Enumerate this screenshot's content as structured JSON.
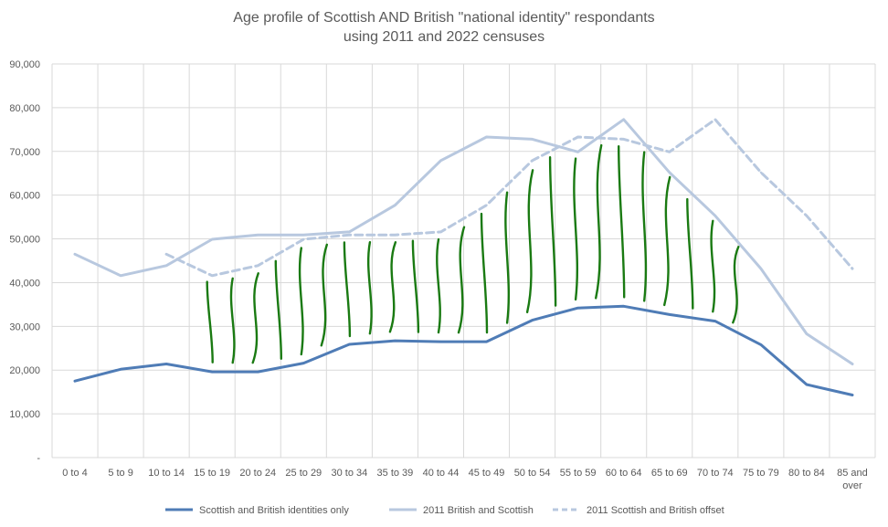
{
  "chart_data": {
    "type": "line",
    "title_lines": [
      "Age profile of Scottish AND British  \"national identity\" respondants",
      "using 2011 and 2022 censuses"
    ],
    "xlabel": "",
    "ylabel": "",
    "ylim": [
      0,
      90000
    ],
    "y_ticks": [
      {
        "value": 0,
        "label": "-"
      },
      {
        "value": 10000,
        "label": "10,000"
      },
      {
        "value": 20000,
        "label": "20,000"
      },
      {
        "value": 30000,
        "label": "30,000"
      },
      {
        "value": 40000,
        "label": "40,000"
      },
      {
        "value": 50000,
        "label": "50,000"
      },
      {
        "value": 60000,
        "label": "60,000"
      },
      {
        "value": 70000,
        "label": "70,000"
      },
      {
        "value": 80000,
        "label": "80,000"
      },
      {
        "value": 90000,
        "label": "90,000"
      }
    ],
    "grid": true,
    "categories": [
      [
        "0 to  4"
      ],
      [
        "5 to 9"
      ],
      [
        "10 to 14"
      ],
      [
        "15 to 19"
      ],
      [
        "20 to 24"
      ],
      [
        "25 to 29"
      ],
      [
        "30 to 34"
      ],
      [
        "35 to 39"
      ],
      [
        "40 to 44"
      ],
      [
        "45 to 49"
      ],
      [
        "50 to 54"
      ],
      [
        "55 to 59"
      ],
      [
        "60 to 64"
      ],
      [
        "65 to 69"
      ],
      [
        "70 to 74"
      ],
      [
        "75 to 79"
      ],
      [
        "80 to 84"
      ],
      [
        "85 and",
        "over"
      ]
    ],
    "series": [
      {
        "name": "Scottish and British identities only",
        "color": "#4f7cb6",
        "style": "solid",
        "values": [
          17500,
          20200,
          21400,
          19600,
          19600,
          21600,
          25900,
          26700,
          26500,
          26500,
          31400,
          34200,
          34600,
          32700,
          31200,
          25800,
          16700,
          14300
        ]
      },
      {
        "name": "2011 British and Scottish",
        "color": "#b8c8df",
        "style": "solid",
        "values": [
          46500,
          41600,
          43900,
          49900,
          50900,
          50900,
          51600,
          57700,
          67900,
          73300,
          72800,
          69900,
          77300,
          65200,
          55300,
          43200,
          28300,
          21400
        ]
      },
      {
        "name": "2011 Scottish and British offset",
        "color": "#b8c8df",
        "style": "dashed",
        "values": [
          null,
          null,
          46500,
          41600,
          43900,
          49900,
          50900,
          50900,
          51600,
          57700,
          67900,
          73300,
          72800,
          69900,
          77300,
          65200,
          55300,
          43200
        ]
      }
    ],
    "annotations": {
      "type": "hand-drawn green hatching between solid dark line and upper light lines",
      "color": "#1a7a12"
    },
    "legend_position": "bottom"
  }
}
